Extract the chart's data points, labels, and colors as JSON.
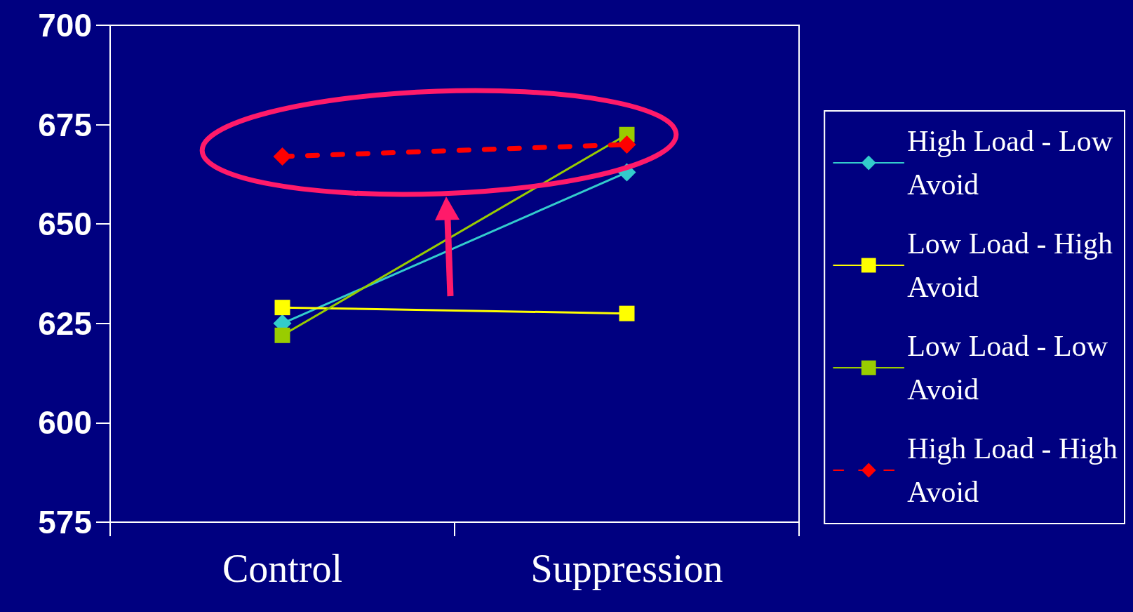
{
  "chart_data": {
    "type": "line",
    "categories": [
      "Control",
      "Suppression"
    ],
    "series": [
      {
        "name": "High Load - Low Avoid",
        "color": "#33cccc",
        "values": [
          625,
          663
        ],
        "marker": "diamond",
        "line_style": "solid"
      },
      {
        "name": "Low Load - High Avoid",
        "color": "#ffff00",
        "values": [
          629,
          627.5
        ],
        "marker": "square",
        "line_style": "solid"
      },
      {
        "name": "Low Load - Low Avoid",
        "color": "#99cc00",
        "values": [
          622,
          672.5
        ],
        "marker": "square",
        "line_style": "solid"
      },
      {
        "name": "High Load - High Avoid",
        "color": "#ff0000",
        "values": [
          667,
          670
        ],
        "marker": "diamond",
        "line_style": "dashed"
      }
    ],
    "ylim": [
      575,
      700
    ],
    "yticks": [
      575,
      600,
      625,
      650,
      675,
      700
    ],
    "grid": false,
    "legend": "right"
  }
}
